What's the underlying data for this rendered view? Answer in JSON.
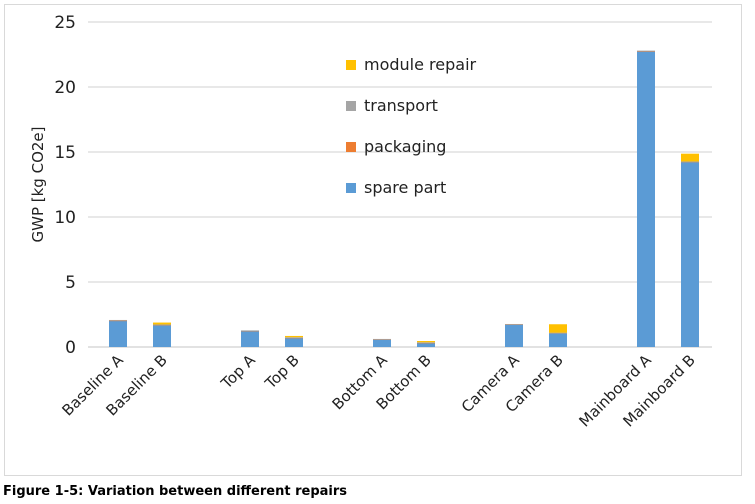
{
  "chart_data": {
    "type": "bar",
    "stacked": true,
    "title": "",
    "xlabel": "",
    "ylabel": "GWP [kg CO2e]",
    "ylim": [
      0,
      25
    ],
    "yticks": [
      0,
      5,
      10,
      15,
      20,
      25
    ],
    "grid": true,
    "legend_position": "top-center",
    "categories": [
      "Baseline A",
      "Baseline B",
      "",
      "Top A",
      "Top B",
      "",
      "Bottom A",
      "Bottom B",
      "",
      "Camera A",
      "Camera B",
      "",
      "Mainboard A",
      "Mainboard B"
    ],
    "series": [
      {
        "name": "spare part",
        "color": "#5b9bd5",
        "values": [
          2.03,
          1.7,
          null,
          1.25,
          0.72,
          null,
          0.6,
          0.33,
          null,
          1.75,
          1.08,
          null,
          22.75,
          14.25
        ]
      },
      {
        "name": "packaging",
        "color": "#ed7d31",
        "values": [
          0.02,
          0.01,
          null,
          0.01,
          0.01,
          null,
          0.01,
          0.01,
          null,
          0.01,
          0.01,
          null,
          0.02,
          0.01
        ]
      },
      {
        "name": "transport",
        "color": "#a5a5a5",
        "values": [
          0.03,
          0.02,
          null,
          0.02,
          0.02,
          null,
          0.01,
          0.02,
          null,
          0.01,
          0.01,
          null,
          0.03,
          0.01
        ]
      },
      {
        "name": "module repair",
        "color": "#ffc000",
        "values": [
          0,
          0.15,
          null,
          0,
          0.1,
          null,
          0,
          0.1,
          null,
          0,
          0.65,
          null,
          0,
          0.6
        ]
      }
    ],
    "legend_order": [
      "module repair",
      "transport",
      "packaging",
      "spare part"
    ]
  },
  "caption": "Figure 1-5: Variation between different repairs"
}
